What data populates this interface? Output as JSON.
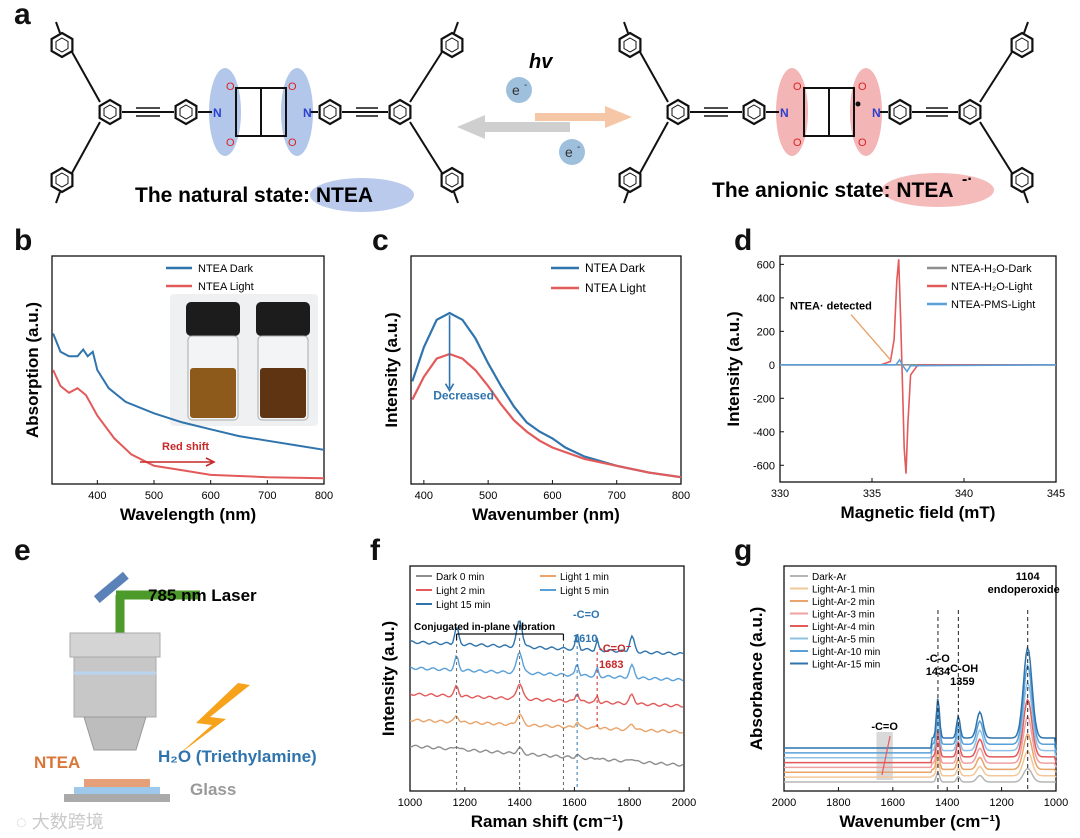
{
  "panels": {
    "a": {
      "letter": "a",
      "hv": "hv",
      "electron": "e",
      "electron_sup": "-",
      "natural_label": "The natural state: ",
      "natural_name": "NTEA",
      "anionic_label": "The anionic state: ",
      "anionic_name": "NTEA",
      "anionic_sup": "-·"
    },
    "b": {
      "letter": "b"
    },
    "c": {
      "letter": "c"
    },
    "d": {
      "letter": "d"
    },
    "e": {
      "letter": "e",
      "laser": "785 nm Laser",
      "ntea": "NTEA",
      "h2o": "H₂O (Triethylamine)",
      "glass": "Glass"
    },
    "f": {
      "letter": "f"
    },
    "g": {
      "letter": "g"
    }
  },
  "watermark": "大数跨境",
  "colors": {
    "blue": "#2f74ad",
    "red": "#e25a5a",
    "gray": "#8e8e8e",
    "orange": "#e8a46a",
    "teal": "#5aa0d8"
  },
  "chart_data": [
    {
      "id": "b",
      "type": "line",
      "xlabel": "Wavelength (nm)",
      "ylabel": "Absorption (a.u.)",
      "xlim": [
        320,
        800
      ],
      "ylim": [
        0,
        1.0
      ],
      "xticks": [
        400,
        500,
        600,
        700,
        800
      ],
      "annotation": "Red shift",
      "series": [
        {
          "name": "NTEA Dark",
          "color": "#2f74ad",
          "points": [
            [
              322,
              0.66
            ],
            [
              335,
              0.58
            ],
            [
              350,
              0.56
            ],
            [
              365,
              0.56
            ],
            [
              375,
              0.59
            ],
            [
              383,
              0.56
            ],
            [
              392,
              0.58
            ],
            [
              400,
              0.5
            ],
            [
              420,
              0.42
            ],
            [
              450,
              0.36
            ],
            [
              500,
              0.31
            ],
            [
              550,
              0.27
            ],
            [
              600,
              0.24
            ],
            [
              650,
              0.21
            ],
            [
              700,
              0.19
            ],
            [
              750,
              0.17
            ],
            [
              800,
              0.15
            ]
          ]
        },
        {
          "name": "NTEA Light",
          "color": "#e25a5a",
          "points": [
            [
              322,
              0.5
            ],
            [
              335,
              0.43
            ],
            [
              350,
              0.4
            ],
            [
              365,
              0.42
            ],
            [
              380,
              0.39
            ],
            [
              400,
              0.3
            ],
            [
              430,
              0.2
            ],
            [
              460,
              0.13
            ],
            [
              500,
              0.08
            ],
            [
              550,
              0.06
            ],
            [
              600,
              0.04
            ],
            [
              650,
              0.035
            ],
            [
              700,
              0.03
            ],
            [
              800,
              0.025
            ]
          ]
        }
      ]
    },
    {
      "id": "c",
      "type": "line",
      "xlabel": "Wavenumber (nm)",
      "ylabel": "Intensity (a.u.)",
      "xlim": [
        380,
        800
      ],
      "ylim": [
        0,
        1.0
      ],
      "xticks": [
        400,
        500,
        600,
        700,
        800
      ],
      "annotation": "Decreased",
      "series": [
        {
          "name": "NTEA Dark",
          "color": "#2f74ad",
          "points": [
            [
              382,
              0.45
            ],
            [
              400,
              0.6
            ],
            [
              420,
              0.72
            ],
            [
              440,
              0.75
            ],
            [
              460,
              0.72
            ],
            [
              480,
              0.64
            ],
            [
              500,
              0.53
            ],
            [
              520,
              0.43
            ],
            [
              540,
              0.34
            ],
            [
              560,
              0.27
            ],
            [
              580,
              0.23
            ],
            [
              600,
              0.2
            ],
            [
              620,
              0.16
            ],
            [
              650,
              0.12
            ],
            [
              700,
              0.08
            ],
            [
              750,
              0.05
            ],
            [
              800,
              0.03
            ]
          ]
        },
        {
          "name": "NTEA Light",
          "color": "#e25a5a",
          "points": [
            [
              382,
              0.37
            ],
            [
              400,
              0.47
            ],
            [
              420,
              0.55
            ],
            [
              440,
              0.57
            ],
            [
              460,
              0.55
            ],
            [
              480,
              0.5
            ],
            [
              500,
              0.43
            ],
            [
              520,
              0.35
            ],
            [
              540,
              0.28
            ],
            [
              560,
              0.23
            ],
            [
              580,
              0.19
            ],
            [
              600,
              0.16
            ],
            [
              620,
              0.14
            ],
            [
              650,
              0.11
            ],
            [
              700,
              0.08
            ],
            [
              750,
              0.05
            ],
            [
              800,
              0.03
            ]
          ]
        }
      ]
    },
    {
      "id": "d",
      "type": "line",
      "xlabel": "Magnetic field (mT)",
      "ylabel": "Intensity (a.u.)",
      "xlim": [
        330,
        345
      ],
      "ylim": [
        -700,
        650
      ],
      "xticks": [
        330,
        335,
        340,
        345
      ],
      "yticks": [
        -600,
        -400,
        -200,
        0,
        200,
        400,
        600
      ],
      "annotation": "NTEA· detected",
      "series": [
        {
          "name": "NTEA-H₂O-Dark",
          "color": "#8e8e8e",
          "points": [
            [
              330,
              0
            ],
            [
              345,
              0
            ]
          ]
        },
        {
          "name": "NTEA-H₂O-Light",
          "color": "#e25a5a",
          "points": [
            [
              330,
              0
            ],
            [
              335.5,
              0
            ],
            [
              336.0,
              20
            ],
            [
              336.2,
              150
            ],
            [
              336.35,
              500
            ],
            [
              336.45,
              630
            ],
            [
              336.55,
              300
            ],
            [
              336.65,
              -100
            ],
            [
              336.75,
              -500
            ],
            [
              336.85,
              -650
            ],
            [
              336.95,
              -350
            ],
            [
              337.1,
              -60
            ],
            [
              337.5,
              0
            ],
            [
              345,
              0
            ]
          ]
        },
        {
          "name": "NTEA-PMS-Light",
          "color": "#5aa0d8",
          "points": [
            [
              330,
              0
            ],
            [
              336.3,
              0
            ],
            [
              336.5,
              30
            ],
            [
              336.7,
              -10
            ],
            [
              336.9,
              -40
            ],
            [
              337.1,
              -5
            ],
            [
              345,
              0
            ]
          ]
        }
      ]
    },
    {
      "id": "f",
      "type": "line",
      "xlabel": "Raman shift (cm⁻¹)",
      "ylabel": "Intensity (a.u.)",
      "xlim": [
        1000,
        2000
      ],
      "xticks": [
        1000,
        1200,
        1400,
        1600,
        1800,
        2000
      ],
      "annotations": [
        "Conjugated in-plane vibration",
        "-C=O",
        "1610",
        "-C=O⁻",
        "1683"
      ],
      "series": [
        {
          "name": "Dark  0 min",
          "color": "#8e8e8e"
        },
        {
          "name": "Light  1 min",
          "color": "#e8a46a"
        },
        {
          "name": "Light  2 min",
          "color": "#e25a5a"
        },
        {
          "name": "Light  5 min",
          "color": "#5aa0d8"
        },
        {
          "name": "Light  15 min",
          "color": "#2f74ad"
        }
      ]
    },
    {
      "id": "g",
      "type": "line",
      "xlabel": "Wavenumber (cm⁻¹)",
      "ylabel": "Absorbance (a.u.)",
      "xlim": [
        2000,
        1000
      ],
      "xticks": [
        2000,
        1800,
        1600,
        1400,
        1200,
        1000
      ],
      "annotations": [
        "1104",
        "endoperoxide",
        "-C-O",
        "1434",
        "-C-OH",
        "1359",
        "-C=O"
      ],
      "series": [
        {
          "name": "Dark-Ar",
          "color": "#b5b5b5"
        },
        {
          "name": "Light-Ar-1 min",
          "color": "#f2c79a"
        },
        {
          "name": "Light-Ar-2 min",
          "color": "#e8a46a"
        },
        {
          "name": "Light-Ar-3 min",
          "color": "#f0a0a0"
        },
        {
          "name": "Light-Ar-4 min",
          "color": "#e25a5a"
        },
        {
          "name": "Light-Ar-5 min",
          "color": "#8fc0e6"
        },
        {
          "name": "Light-Ar-10 min",
          "color": "#5aa0d8"
        },
        {
          "name": "Light-Ar-15 min",
          "color": "#2f74ad"
        }
      ]
    }
  ]
}
